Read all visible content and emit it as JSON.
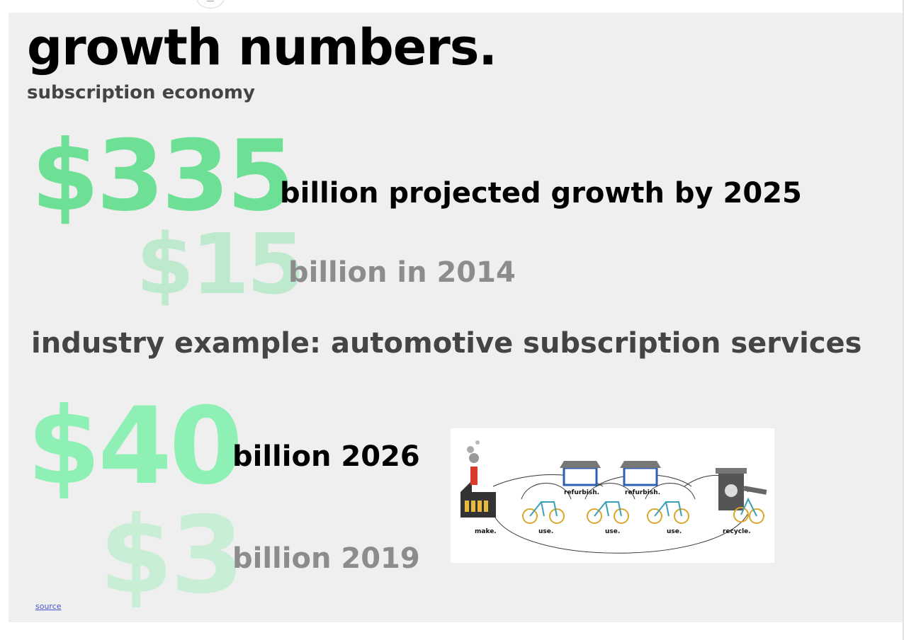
{
  "slide": {
    "title": "growth numbers.",
    "subtitle": "subscription economy",
    "stat_2025": {
      "value": "$335",
      "caption": "billion projected growth by 2025"
    },
    "stat_2014": {
      "value": "$15",
      "caption": "billion in 2014"
    },
    "industry_heading": "industry example: automotive subscription services",
    "stat_2026": {
      "value": "$40",
      "caption": "billion 2026"
    },
    "stat_2019": {
      "value": "$3",
      "caption": "billion 2019"
    },
    "source_link": "source"
  },
  "diagram": {
    "labels": {
      "make": "make.",
      "use1": "use.",
      "use2": "use.",
      "use3": "use.",
      "refurbish1": "refurbish.",
      "refurbish2": "refurbish.",
      "recycle": "recycle."
    }
  },
  "colors": {
    "slide_background": "#efefef",
    "accent_green": "#6ee096",
    "light_green": "#bde9cd",
    "heading_gray": "#444444",
    "caption_gray": "#8c8c8c"
  }
}
